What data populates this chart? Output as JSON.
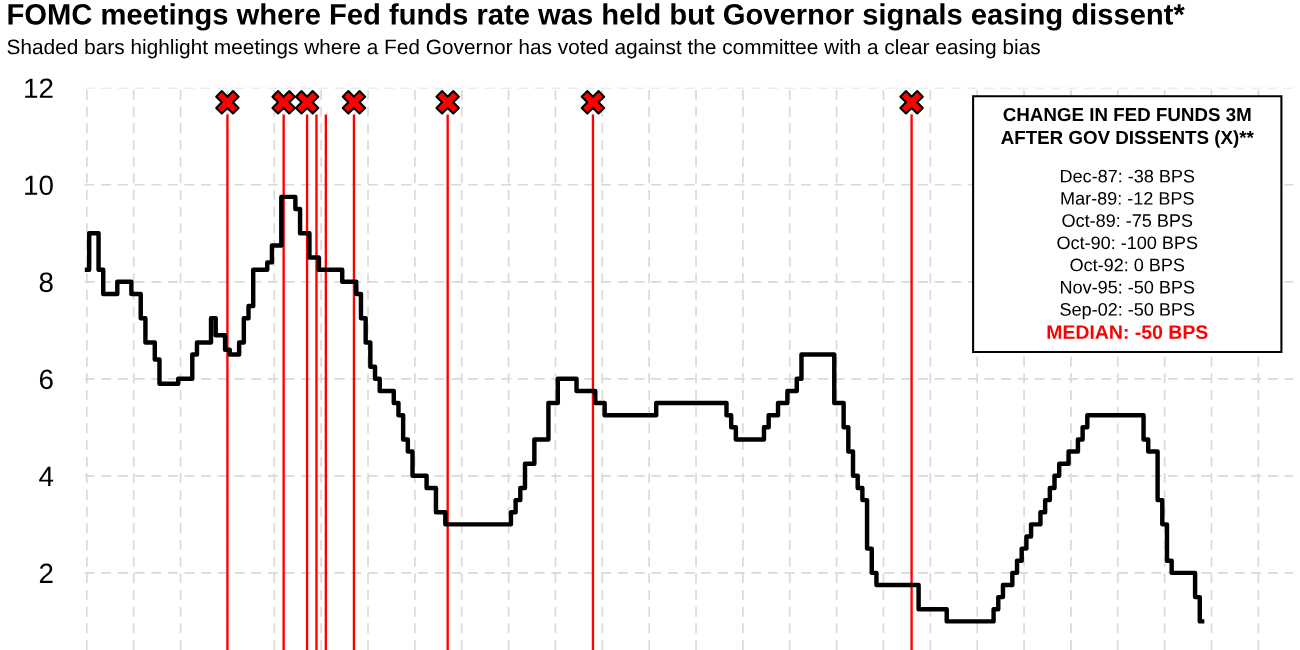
{
  "chart_data": {
    "type": "step",
    "title": "FOMC meetings where Fed funds rate was held but Governor signals easing dissent*",
    "subtitle": "Shaded bars highlight meetings where a Fed Governor has voted against the committee with a clear easing bias",
    "categories": [
      null,
      null,
      null,
      null,
      null,
      null,
      null,
      null,
      null,
      null,
      null,
      null,
      null,
      null,
      null,
      null,
      null,
      null,
      null,
      null,
      null,
      null,
      null,
      null,
      null,
      null,
      null,
      null,
      null,
      null,
      null,
      null,
      null,
      null,
      null,
      null,
      null,
      null,
      null,
      null,
      null,
      null,
      null,
      null,
      null,
      null,
      null,
      null,
      null,
      null,
      null,
      null,
      null,
      null,
      null,
      null,
      null,
      null,
      null,
      null,
      null,
      null,
      null,
      null,
      null,
      null,
      null,
      null,
      null,
      null,
      null,
      null,
      null,
      null,
      null,
      null,
      null,
      null,
      null,
      null,
      null,
      null,
      null,
      null,
      null,
      null,
      null,
      null,
      null,
      null,
      null,
      null,
      null,
      null,
      null,
      null,
      null,
      null,
      null,
      null,
      null,
      null,
      null,
      null,
      null,
      null,
      null,
      null,
      null,
      null,
      null,
      null,
      null,
      null,
      null,
      null,
      null,
      null,
      null,
      null,
      null,
      null,
      null,
      null,
      null,
      null,
      null,
      null,
      null,
      null,
      null,
      null,
      null,
      null,
      null,
      null,
      null,
      null,
      null,
      null,
      null,
      null,
      null,
      null,
      null,
      null,
      null,
      null,
      null,
      null,
      null,
      null,
      null,
      null,
      null,
      null,
      null,
      null,
      null,
      null,
      null,
      null,
      null,
      null,
      null,
      null,
      null,
      null,
      null,
      null,
      null,
      null,
      null,
      null,
      null,
      null,
      null,
      null,
      null,
      null,
      null,
      null,
      null,
      null,
      null,
      null,
      null,
      null,
      null,
      null,
      null,
      null,
      null,
      null,
      null,
      null,
      null,
      null,
      null,
      null,
      null,
      null,
      null,
      null,
      null,
      null,
      null,
      null,
      null,
      null,
      null,
      null,
      null,
      null,
      null,
      null,
      null,
      null,
      null,
      null,
      null,
      null,
      null,
      null,
      null,
      null,
      null,
      null,
      null,
      null,
      null,
      null,
      null,
      null,
      null,
      null,
      null,
      null,
      null
    ],
    "series": [
      {
        "color": "#000000",
        "line_style": "solid",
        "values": [
          8.25,
          9.0,
          9.0,
          8.25,
          7.75,
          7.75,
          7.75,
          8.0,
          8.0,
          8.0,
          7.75,
          7.75,
          7.25,
          6.75,
          6.75,
          6.4,
          5.9,
          5.9,
          5.9,
          5.9,
          6.0,
          6.0,
          6.0,
          6.5,
          6.75,
          6.75,
          6.75,
          7.25,
          6.9,
          6.9,
          6.6,
          6.5,
          6.5,
          6.75,
          7.25,
          7.5,
          8.25,
          8.25,
          8.25,
          8.4,
          8.75,
          8.75,
          9.75,
          9.75,
          9.75,
          9.5,
          9.0,
          9.0,
          8.5,
          8.5,
          8.25,
          8.25,
          8.25,
          8.25,
          8.25,
          8.0,
          8.0,
          8.0,
          7.75,
          7.25,
          6.75,
          6.25,
          6.0,
          5.75,
          5.75,
          5.75,
          5.5,
          5.25,
          4.75,
          4.5,
          4.0,
          4.0,
          4.0,
          3.75,
          3.75,
          3.25,
          3.25,
          3.0,
          3.0,
          3.0,
          3.0,
          3.0,
          3.0,
          3.0,
          3.0,
          3.0,
          3.0,
          3.0,
          3.0,
          3.0,
          3.0,
          3.25,
          3.5,
          3.75,
          4.25,
          4.25,
          4.75,
          4.75,
          4.75,
          5.5,
          5.5,
          6.0,
          6.0,
          6.0,
          6.0,
          5.75,
          5.75,
          5.75,
          5.75,
          5.5,
          5.5,
          5.25,
          5.25,
          5.25,
          5.25,
          5.25,
          5.25,
          5.25,
          5.25,
          5.25,
          5.25,
          5.25,
          5.5,
          5.5,
          5.5,
          5.5,
          5.5,
          5.5,
          5.5,
          5.5,
          5.5,
          5.5,
          5.5,
          5.5,
          5.5,
          5.5,
          5.5,
          5.25,
          5.0,
          4.75,
          4.75,
          4.75,
          4.75,
          4.75,
          4.75,
          5.0,
          5.25,
          5.25,
          5.5,
          5.5,
          5.75,
          5.75,
          6.0,
          6.5,
          6.5,
          6.5,
          6.5,
          6.5,
          6.5,
          6.5,
          5.5,
          5.5,
          5.0,
          4.5,
          4.0,
          3.75,
          3.5,
          2.5,
          2.0,
          1.75,
          1.75,
          1.75,
          1.75,
          1.75,
          1.75,
          1.75,
          1.75,
          1.75,
          1.25,
          1.25,
          1.25,
          1.25,
          1.25,
          1.25,
          1.0,
          1.0,
          1.0,
          1.0,
          1.0,
          1.0,
          1.0,
          1.0,
          1.0,
          1.0,
          1.25,
          1.5,
          1.75,
          1.75,
          2.0,
          2.25,
          2.5,
          2.75,
          3.0,
          3.0,
          3.25,
          3.5,
          3.75,
          4.0,
          4.25,
          4.25,
          4.5,
          4.5,
          4.75,
          5.0,
          5.25,
          5.25,
          5.25,
          5.25,
          5.25,
          5.25,
          5.25,
          5.25,
          5.25,
          5.25,
          5.25,
          5.25,
          4.75,
          4.5,
          4.5,
          3.5,
          3.0,
          2.25,
          2.0,
          2.0,
          2.0,
          2.0,
          2.0,
          1.5,
          1.0
        ]
      },
      {
        "type": "bar",
        "color": "#ff0000",
        "values": [
          null,
          null,
          null,
          null,
          null,
          null,
          null,
          null,
          null,
          null,
          null,
          null,
          null,
          null,
          null,
          null,
          null,
          null,
          null,
          null,
          null,
          null,
          null,
          null,
          null,
          null,
          null,
          null,
          null,
          null,
          11.45,
          null,
          null,
          null,
          null,
          null,
          null,
          null,
          null,
          null,
          null,
          null,
          11.45,
          null,
          null,
          null,
          null,
          11.45,
          null,
          11.45,
          null,
          11.45,
          null,
          null,
          null,
          null,
          null,
          11.45,
          null,
          null,
          null,
          null,
          null,
          null,
          null,
          null,
          null,
          null,
          null,
          null,
          null,
          null,
          null,
          null,
          null,
          null,
          null,
          11.45,
          null,
          null,
          null,
          null,
          null,
          null,
          null,
          null,
          null,
          null,
          null,
          null,
          null,
          null,
          null,
          null,
          null,
          null,
          null,
          null,
          null,
          null,
          null,
          null,
          null,
          null,
          null,
          null,
          null,
          null,
          11.45,
          null,
          null,
          null,
          null,
          null,
          null,
          null,
          null,
          null,
          null,
          null,
          null,
          null,
          null,
          null,
          null,
          null,
          null,
          null,
          null,
          null,
          null,
          null,
          null,
          null,
          null,
          null,
          null,
          null,
          null,
          null,
          null,
          null,
          null,
          null,
          null,
          null,
          null,
          null,
          null,
          null,
          null,
          null,
          null,
          null,
          null,
          null,
          null,
          null,
          null,
          null,
          null,
          null,
          null,
          null,
          null,
          null,
          null,
          null,
          null,
          null,
          null,
          null,
          null,
          null,
          null,
          null,
          11.45,
          null,
          null,
          null,
          null,
          null,
          null,
          null,
          null,
          null,
          null,
          null,
          null,
          null,
          null,
          null,
          null,
          null,
          null,
          null,
          null,
          null,
          null,
          null,
          null,
          null,
          null,
          null,
          null,
          null,
          null,
          null,
          null,
          null,
          null,
          null,
          null,
          null,
          null,
          null,
          null,
          null,
          null,
          null,
          null,
          null,
          null,
          null,
          null,
          null,
          null,
          null,
          null,
          null,
          null,
          null,
          null,
          null,
          null,
          null,
          null,
          null,
          null
        ]
      },
      {
        "type": "scatter",
        "color": "#ff0000",
        "marker": "cross",
        "values": [
          null,
          null,
          null,
          null,
          null,
          null,
          null,
          null,
          null,
          null,
          null,
          null,
          null,
          null,
          null,
          null,
          null,
          null,
          null,
          null,
          null,
          null,
          null,
          null,
          null,
          null,
          null,
          null,
          null,
          null,
          11.7,
          null,
          null,
          null,
          null,
          null,
          null,
          null,
          null,
          null,
          null,
          null,
          11.7,
          null,
          null,
          null,
          null,
          11.7,
          null,
          null,
          null,
          null,
          null,
          null,
          null,
          null,
          null,
          11.7,
          null,
          null,
          null,
          null,
          null,
          null,
          null,
          null,
          null,
          null,
          null,
          null,
          null,
          null,
          null,
          null,
          null,
          null,
          null,
          11.7,
          null,
          null,
          null,
          null,
          null,
          null,
          null,
          null,
          null,
          null,
          null,
          null,
          null,
          null,
          null,
          null,
          null,
          null,
          null,
          null,
          null,
          null,
          null,
          null,
          null,
          null,
          null,
          null,
          null,
          null,
          11.7,
          null,
          null,
          null,
          null,
          null,
          null,
          null,
          null,
          null,
          null,
          null,
          null,
          null,
          null,
          null,
          null,
          null,
          null,
          null,
          null,
          null,
          null,
          null,
          null,
          null,
          null,
          null,
          null,
          null,
          null,
          null,
          null,
          null,
          null,
          null,
          null,
          null,
          null,
          null,
          null,
          null,
          null,
          null,
          null,
          null,
          null,
          null,
          null,
          null,
          null,
          null,
          null,
          null,
          null,
          null,
          null,
          null,
          null,
          null,
          null,
          null,
          null,
          null,
          null,
          null,
          null,
          null,
          11.7,
          null,
          null,
          null,
          null,
          null,
          null,
          null,
          null,
          null,
          null,
          null,
          null,
          null,
          null,
          null,
          null,
          null,
          null,
          null,
          null,
          null,
          null,
          null,
          null,
          null,
          null,
          null,
          null,
          null,
          null,
          null,
          null,
          null,
          null,
          null,
          null,
          null,
          null,
          null,
          null,
          null,
          null,
          null,
          null,
          null,
          null,
          null,
          null,
          null,
          null,
          null,
          null,
          null,
          null,
          null,
          null,
          null,
          null,
          null,
          null,
          null,
          null
        ]
      }
    ],
    "annotations": [
      "CHANGE IN FED FUNDS 3M\nAFTER GOV DISSENTS (X)**",
      "Dec-87: -38 BPS",
      "Mar-89: -12 BPS",
      "Oct-89: -75 BPS",
      "Oct-90: -100 BPS",
      "Oct-92: 0 BPS",
      "Nov-95: -50 BPS",
      "Sep-02: -50 BPS",
      "MEDIAN: -50 BPS"
    ],
    "ylim": [
      0.41,
      12
    ],
    "yticks": [
      2,
      4,
      6,
      8,
      10,
      12
    ],
    "tick_labels": "y",
    "grid": true
  }
}
